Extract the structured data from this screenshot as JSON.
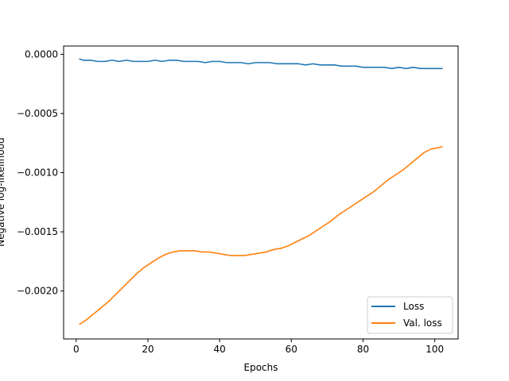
{
  "chart_data": {
    "type": "line",
    "title": "",
    "xlabel": "Epochs",
    "ylabel": "Negative log-likelihood",
    "xlim": [
      -3.5,
      106.5
    ],
    "ylim": [
      -0.002405,
      7e-05
    ],
    "xticks": [
      0,
      20,
      40,
      60,
      80,
      100
    ],
    "yticks": [
      0.0,
      -0.0005,
      -0.001,
      -0.0015,
      -0.002
    ],
    "ytick_labels": [
      "0.0000",
      "−0.0005",
      "−0.0010",
      "−0.0015",
      "−0.0020"
    ],
    "xtick_labels": [
      "0",
      "20",
      "40",
      "60",
      "80",
      "100"
    ],
    "grid": false,
    "legend_position": "lower-right",
    "series": [
      {
        "name": "Loss",
        "color": "#1f77b4",
        "x": [
          1,
          2,
          4,
          6,
          8,
          10,
          12,
          14,
          16,
          18,
          20,
          22,
          24,
          26,
          28,
          30,
          32,
          34,
          36,
          38,
          40,
          42,
          44,
          46,
          48,
          50,
          52,
          54,
          56,
          58,
          60,
          62,
          64,
          66,
          68,
          70,
          72,
          74,
          76,
          78,
          80,
          82,
          84,
          86,
          88,
          90,
          92,
          94,
          96,
          98,
          100,
          102
        ],
        "y": [
          -4e-05,
          -5e-05,
          -5e-05,
          -6e-05,
          -6e-05,
          -5e-05,
          -6e-05,
          -5e-05,
          -6e-05,
          -6e-05,
          -6e-05,
          -5e-05,
          -6e-05,
          -5e-05,
          -5e-05,
          -6e-05,
          -6e-05,
          -6e-05,
          -7e-05,
          -6e-05,
          -6e-05,
          -7e-05,
          -7e-05,
          -7e-05,
          -8e-05,
          -7e-05,
          -7e-05,
          -7e-05,
          -8e-05,
          -8e-05,
          -8e-05,
          -8e-05,
          -9e-05,
          -8e-05,
          -9e-05,
          -9e-05,
          -9e-05,
          -0.0001,
          -0.0001,
          -0.0001,
          -0.00011,
          -0.00011,
          -0.00011,
          -0.00011,
          -0.00012,
          -0.00011,
          -0.00012,
          -0.00011,
          -0.00012,
          -0.00012,
          -0.00012,
          -0.00012
        ]
      },
      {
        "name": "Val. loss",
        "color": "#ff7f0e",
        "x": [
          1,
          3,
          5,
          7,
          9,
          11,
          13,
          15,
          17,
          19,
          21,
          23,
          25,
          27,
          29,
          31,
          33,
          35,
          37,
          39,
          41,
          43,
          45,
          47,
          49,
          51,
          53,
          55,
          57,
          59,
          61,
          63,
          65,
          67,
          69,
          71,
          73,
          75,
          77,
          79,
          81,
          83,
          85,
          87,
          89,
          91,
          93,
          95,
          97,
          99,
          101,
          102
        ],
        "y": [
          -0.00228,
          -0.00224,
          -0.00219,
          -0.00214,
          -0.00209,
          -0.00203,
          -0.00197,
          -0.00191,
          -0.00185,
          -0.0018,
          -0.00176,
          -0.00172,
          -0.00169,
          -0.00167,
          -0.00166,
          -0.00166,
          -0.00166,
          -0.00167,
          -0.00167,
          -0.00168,
          -0.00169,
          -0.0017,
          -0.0017,
          -0.0017,
          -0.00169,
          -0.00168,
          -0.00167,
          -0.00165,
          -0.00164,
          -0.00162,
          -0.00159,
          -0.00156,
          -0.00153,
          -0.00149,
          -0.00145,
          -0.00141,
          -0.00136,
          -0.00132,
          -0.00128,
          -0.00124,
          -0.0012,
          -0.00116,
          -0.00111,
          -0.00106,
          -0.00102,
          -0.00098,
          -0.00093,
          -0.00088,
          -0.00083,
          -0.0008,
          -0.00079,
          -0.00078
        ]
      }
    ]
  }
}
